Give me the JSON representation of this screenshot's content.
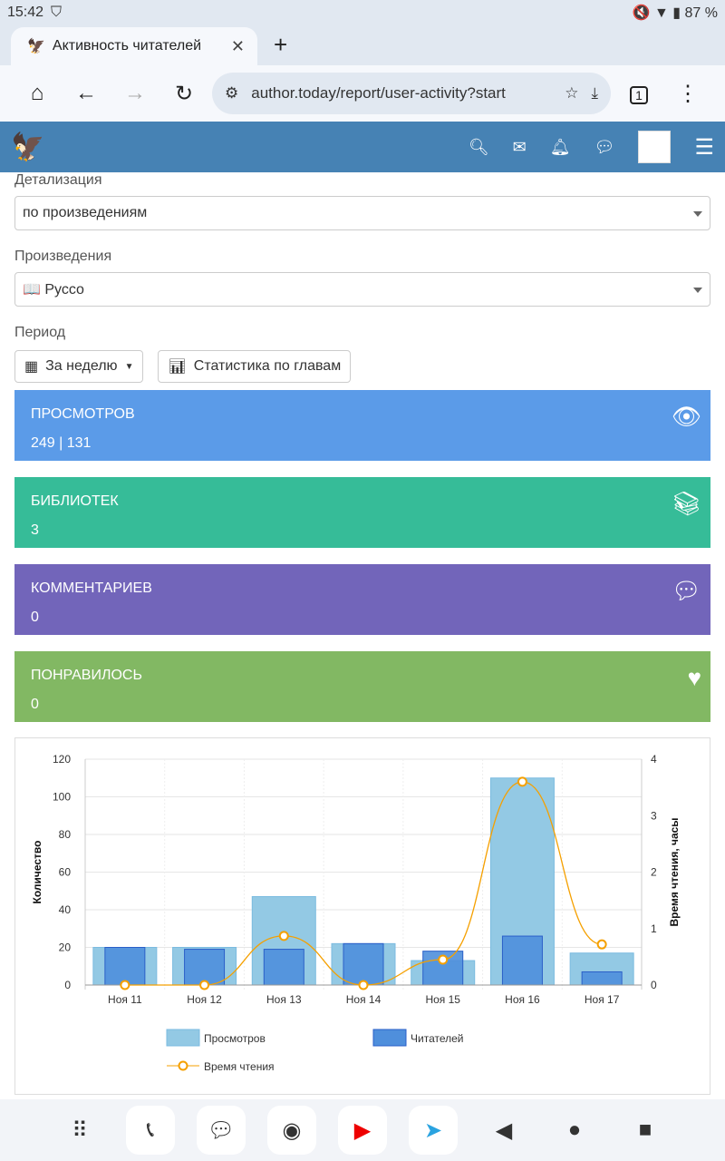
{
  "status": {
    "time": "15:42",
    "battery": "87 %"
  },
  "browser": {
    "tab_title": "Активность читателей",
    "url": "author.today/report/user-activity?start",
    "tab_count": "1"
  },
  "form": {
    "detail_label": "Детализация",
    "detail_value": "по произведениям",
    "works_label": "Произведения",
    "works_value": "📖 Руссо",
    "period_label": "Период",
    "period_value": "За неделю",
    "chapters_button": "Статистика по главам"
  },
  "cards": [
    {
      "title": "Просмотров",
      "value": "249 | 131",
      "color": "#5b9be8"
    },
    {
      "title": "Библиотек",
      "value": "3",
      "color": "#36bc98"
    },
    {
      "title": "Комментариев",
      "value": "0",
      "color": "#7265ba"
    },
    {
      "title": "Понравилось",
      "value": "0",
      "color": "#82b863"
    }
  ],
  "chart_data": {
    "type": "bar",
    "categories": [
      "Ноя 11",
      "Ноя 12",
      "Ноя 13",
      "Ноя 14",
      "Ноя 15",
      "Ноя 16",
      "Ноя 17"
    ],
    "series": [
      {
        "name": "Просмотров",
        "type": "bar",
        "axis": "left",
        "values": [
          20,
          20,
          47,
          22,
          13,
          110,
          17
        ],
        "color": "#93c9e4"
      },
      {
        "name": "Читателей",
        "type": "bar",
        "axis": "left",
        "values": [
          20,
          19,
          19,
          22,
          18,
          26,
          7
        ],
        "color": "#4f8fdc"
      },
      {
        "name": "Время чтения",
        "type": "line",
        "axis": "right",
        "values": [
          0,
          0,
          0.87,
          0,
          0.45,
          3.6,
          0.72
        ],
        "color": "#f5a000"
      }
    ],
    "ylabel": "Количество",
    "y2label": "Время чтения, часы",
    "ylim": [
      0,
      120
    ],
    "y2lim": [
      0,
      4
    ],
    "yticks": [
      0,
      20,
      40,
      60,
      80,
      100,
      120
    ],
    "y2ticks": [
      0,
      1,
      2,
      3,
      4
    ],
    "legend": "bottom"
  }
}
